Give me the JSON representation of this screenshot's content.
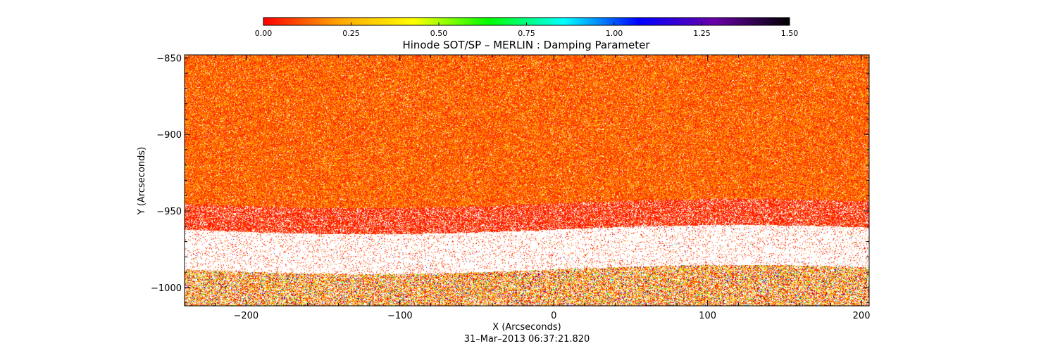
{
  "chart_data": {
    "type": "heatmap",
    "title": "Hinode SOT/SP – MERLIN : Damping Parameter",
    "xlabel": "X (Arcseconds)",
    "ylabel": "Y (Arcseconds)",
    "date_label": "31–Mar–2013 06:37:21.820",
    "xlim": [
      -240,
      205
    ],
    "ylim": [
      -1012,
      -848
    ],
    "x_ticks": [
      -200,
      -100,
      0,
      100,
      200
    ],
    "x_tick_labels": [
      "−200",
      "−100",
      "0",
      "100",
      "200"
    ],
    "y_ticks": [
      -850,
      -900,
      -950,
      -1000
    ],
    "y_tick_labels": [
      "−850",
      "−900",
      "−950",
      "−1000"
    ],
    "colorbar": {
      "range": [
        0.0,
        1.5
      ],
      "ticks": [
        0.0,
        0.25,
        0.5,
        0.75,
        1.0,
        1.25,
        1.5
      ],
      "tick_labels": [
        "0.00",
        "0.25",
        "0.50",
        "0.75",
        "1.00",
        "1.25",
        "1.50"
      ],
      "colors": [
        "#ff0000",
        "#ffa500",
        "#ffff00",
        "#00ff00",
        "#00ffff",
        "#0000ff",
        "#6a00a8",
        "#000000"
      ]
    },
    "regions": [
      {
        "y_range": [
          -950,
          -848
        ],
        "dominant_value": 0.12,
        "description": "dense orange/red/yellow"
      },
      {
        "y_range": [
          -965,
          -950
        ],
        "dominant_value": 0.02,
        "description": "red with gaps"
      },
      {
        "y_range": [
          -988,
          -965
        ],
        "dominant_value": null,
        "description": "mostly blank"
      },
      {
        "y_range": [
          -1012,
          -988
        ],
        "dominant_value": 0.3,
        "description": "sparse mixed"
      }
    ],
    "grid": false
  }
}
